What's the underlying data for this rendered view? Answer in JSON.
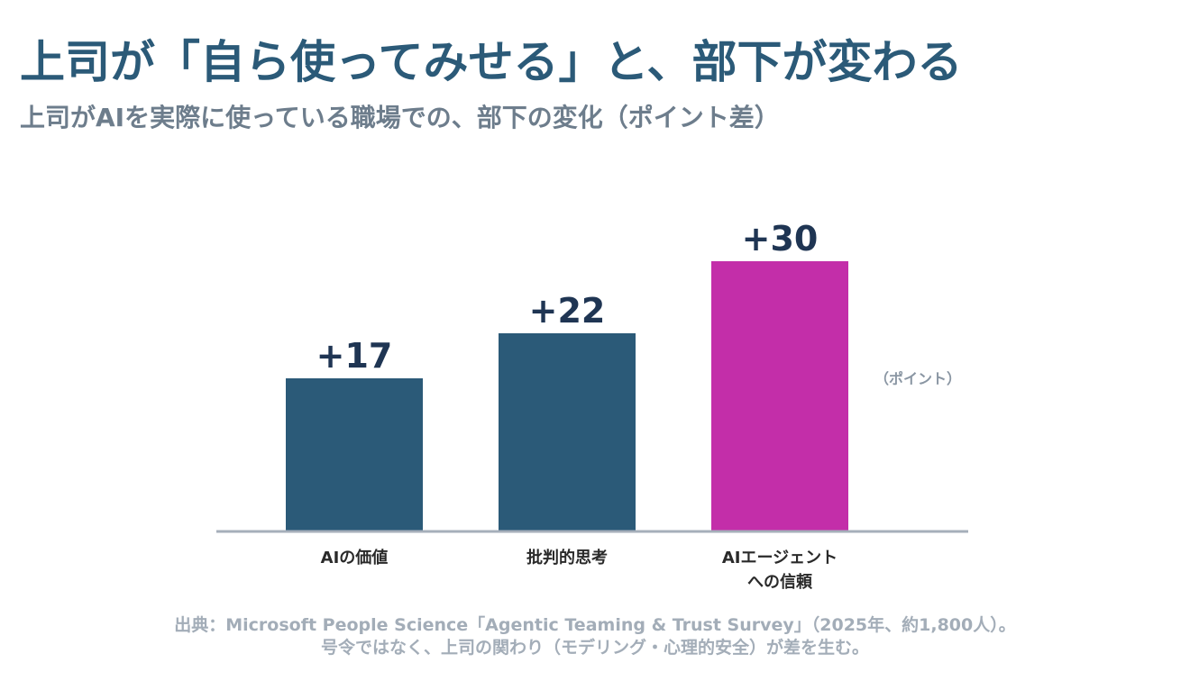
{
  "header": {
    "title": "上司が「自ら使ってみせる」と、部下が変わる",
    "subtitle": "上司がAIを実際に使っている職場での、部下の変化（ポイント差）"
  },
  "chart_data": {
    "type": "bar",
    "categories": [
      "AIの価値",
      "批判的思考",
      "AIエージェント\nへの信頼"
    ],
    "values": [
      17,
      22,
      30
    ],
    "value_labels": [
      "+17",
      "+22",
      "+30"
    ],
    "unit_label": "（ポイント）",
    "ylim": [
      0,
      40
    ],
    "grid": false,
    "colors": [
      "#2b5a78",
      "#2b5a78",
      "#c32ea9"
    ],
    "axis_color": "#a6afba"
  },
  "footnote": {
    "line1": "出典：Microsoft People Science「Agentic Teaming & Trust Survey」（2025年、約1,800人）。",
    "line2": "号令ではなく、上司の関わり（モデリング・心理的安全）が差を生む。"
  }
}
